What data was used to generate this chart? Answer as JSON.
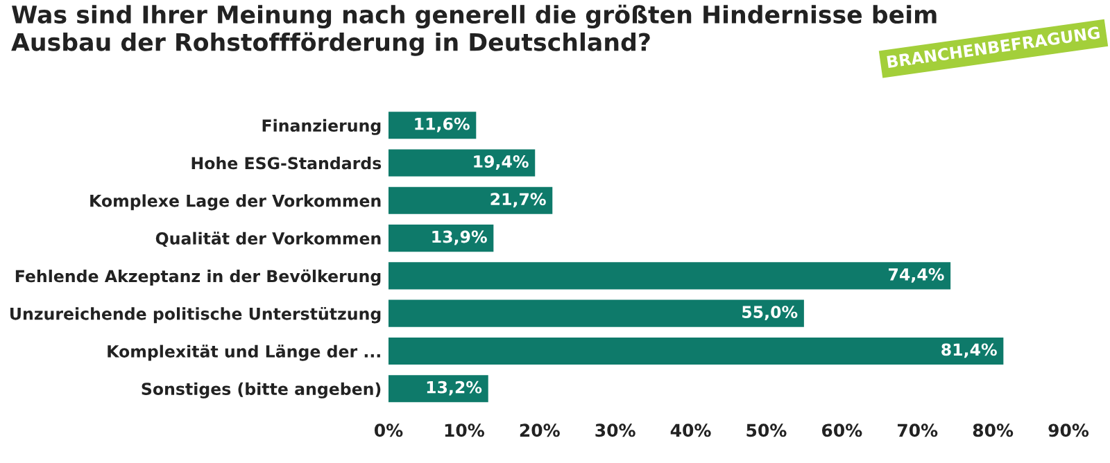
{
  "chart_data": {
    "type": "bar",
    "orientation": "horizontal",
    "title": "Was sind Ihrer Meinung nach generell die größten Hindernisse beim\nAusbau der Rohstoffförderung in Deutschland?",
    "annotations": [
      "BRANCHENBEFRAGUNG"
    ],
    "categories": [
      "Finanzierung",
      "Hohe ESG-Standards",
      "Komplexe Lage der Vorkommen",
      "Qualität der Vorkommen",
      "Fehlende Akzeptanz in der Bevölkerung",
      "Unzureichende politische Unterstützung",
      "Komplexität und Länge der ...",
      "Sonstiges (bitte angeben)"
    ],
    "values": [
      11.6,
      19.4,
      21.7,
      13.9,
      74.4,
      55.0,
      81.4,
      13.2
    ],
    "value_labels": [
      "11,6%",
      "19,4%",
      "21,7%",
      "13,9%",
      "74,4%",
      "55,0%",
      "81,4%",
      "13,2%"
    ],
    "color": "#0e7a6a",
    "xlim": [
      0,
      90
    ],
    "xticks": [
      {
        "value": 0,
        "label": "0%"
      },
      {
        "value": 10,
        "label": "10%"
      },
      {
        "value": 20,
        "label": "20%"
      },
      {
        "value": 30,
        "label": "30%"
      },
      {
        "value": 40,
        "label": "40%"
      },
      {
        "value": 50,
        "label": "50%"
      },
      {
        "value": 60,
        "label": "60%"
      },
      {
        "value": 70,
        "label": "70%"
      },
      {
        "value": 80,
        "label": "80%"
      },
      {
        "value": 90,
        "label": "90%"
      }
    ],
    "grid": false,
    "legend": false
  }
}
